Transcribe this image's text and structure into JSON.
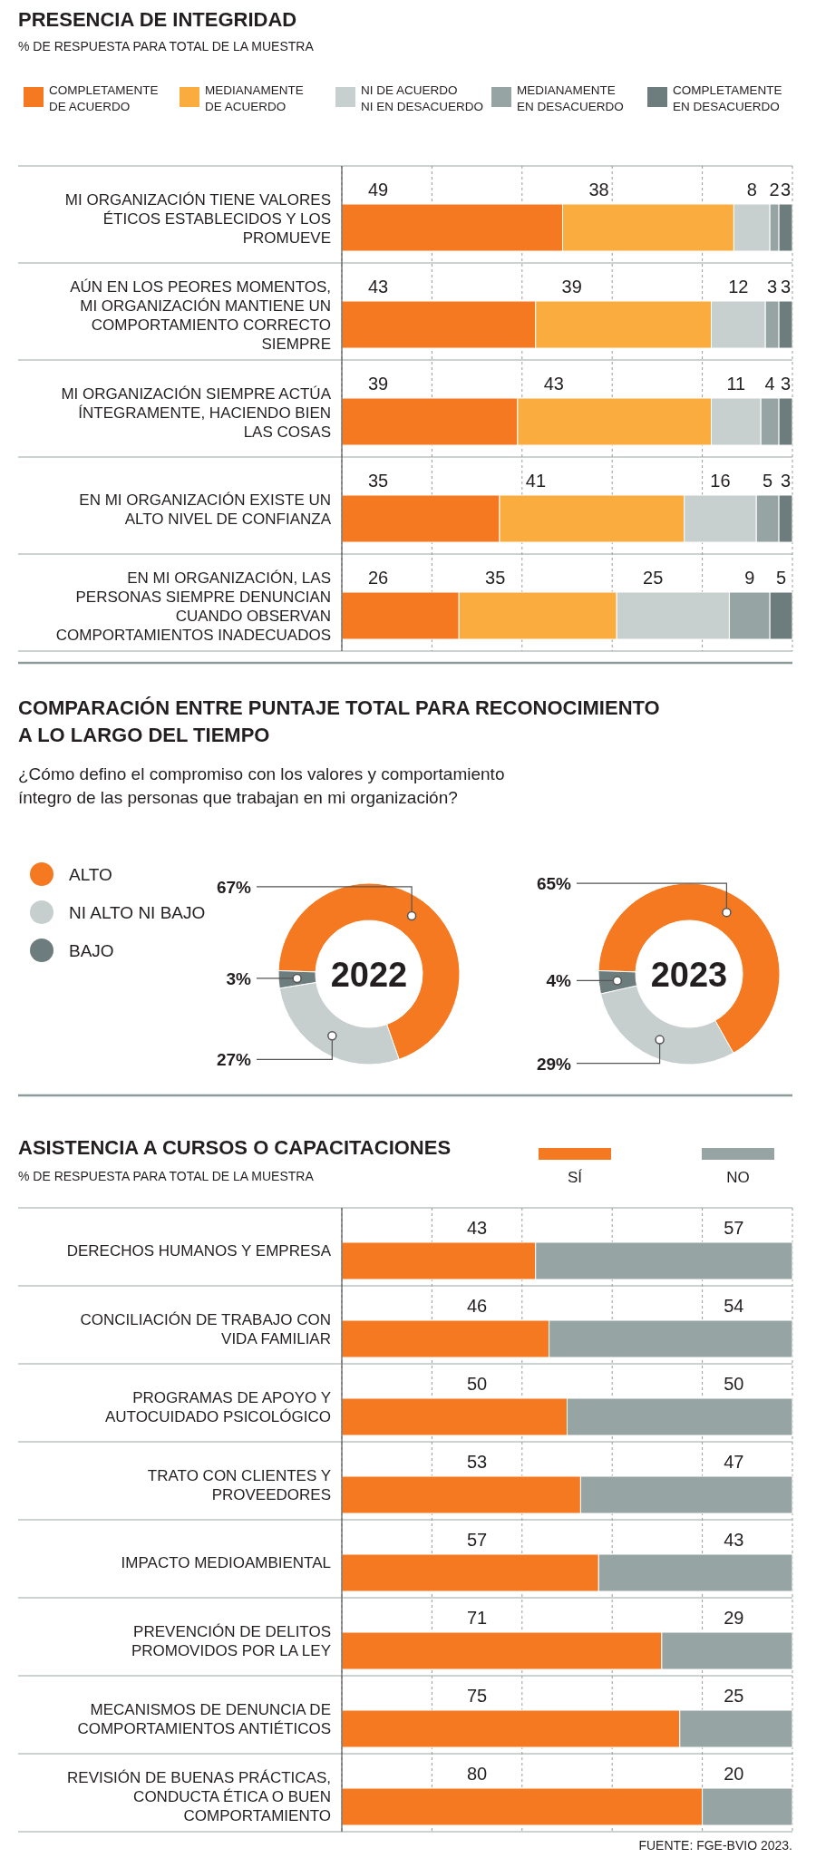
{
  "chart_data": [
    {
      "type": "bar",
      "title": "PRESENCIA DE INTEGRIDAD",
      "subtitle": "% DE RESPUESTA PARA TOTAL DE LA MUESTRA",
      "orientation": "horizontal",
      "stacked": true,
      "legend": "top",
      "data_labels": true,
      "grid": "x",
      "tick_labels": "y",
      "xlim": [
        0,
        100
      ],
      "xticks": [
        {
          "value": 0,
          "label": null
        },
        {
          "value": 20,
          "label": null
        },
        {
          "value": 40,
          "label": null
        },
        {
          "value": 60,
          "label": null
        },
        {
          "value": 80,
          "label": null
        },
        {
          "value": 100,
          "label": null
        }
      ],
      "categories": [
        "MI ORGANIZACIÓN TIENE VALORES ÉTICOS ESTABLECIDOS Y LOS PROMUEVE",
        "AÚN EN LOS PEORES MOMENTOS, MI ORGANIZACIÓN MANTIENE UN COMPORTAMIENTO CORRECTO SIEMPRE",
        "MI ORGANIZACIÓN SIEMPRE ACTÚA ÍNTEGRAMENTE, HACIENDO BIEN LAS COSAS",
        "EN MI ORGANIZACIÓN EXISTE UN ALTO NIVEL DE CONFIANZA",
        "EN MI ORGANIZACIÓN, LAS PERSONAS SIEMPRE DENUNCIAN CUANDO OBSERVAN COMPORTAMIENTOS INADECUADOS"
      ],
      "series": [
        {
          "name": "COMPLETAMENTE DE ACUERDO",
          "color": "#f47920",
          "values": [
            49,
            43,
            39,
            35,
            26
          ]
        },
        {
          "name": "MEDIANAMENTE DE ACUERDO",
          "color": "#fbac3e",
          "values": [
            38,
            39,
            43,
            41,
            35
          ]
        },
        {
          "name": "NI DE ACUERDO NI EN DESACUERDO",
          "color": "#c7d0cf",
          "values": [
            8,
            12,
            11,
            16,
            25
          ]
        },
        {
          "name": "MEDIANAMENTE EN DESACUERDO",
          "color": "#97a4a4",
          "values": [
            2,
            3,
            4,
            5,
            9
          ]
        },
        {
          "name": "COMPLETAMENTE EN DESACUERDO",
          "color": "#6d7c7c",
          "values": [
            3,
            3,
            3,
            3,
            5
          ]
        }
      ]
    },
    {
      "type": "donut",
      "title": "COMPARACIÓN ENTRE PUNTAJE TOTAL PARA RECONOCIMIENTO A LO LARGO DEL TIEMPO",
      "subtitle": "¿Cómo defino el compromiso con los valores y comportamiento íntegro de las personas que trabajan en mi organización?",
      "legend": "left",
      "annotations": [
        "2022"
      ],
      "categories": [
        "ALTO",
        "NI ALTO NI BAJO",
        "BAJO"
      ],
      "values": [
        67,
        27,
        3
      ],
      "colors": [
        "#f47920",
        "#c6cfce",
        "#6d7c7c"
      ],
      "value_labels": [
        "67%",
        "27%",
        "3%"
      ]
    },
    {
      "type": "donut",
      "annotations": [
        "2023"
      ],
      "categories": [
        null,
        null,
        null
      ],
      "values": [
        65,
        29,
        4
      ],
      "colors": [
        "#f47920",
        "#c6cfce",
        "#6d7c7c"
      ],
      "value_labels": [
        "65%",
        "29%",
        "4%"
      ]
    },
    {
      "type": "bar",
      "title": "ASISTENCIA A CURSOS O CAPACITACIONES",
      "subtitle": "% DE RESPUESTA PARA TOTAL DE LA MUESTRA",
      "orientation": "horizontal",
      "stacked": true,
      "legend": "top right",
      "data_labels": true,
      "grid": "x",
      "tick_labels": "y",
      "xlim": [
        0,
        100
      ],
      "xticks": [
        {
          "value": 0,
          "label": null
        },
        {
          "value": 20,
          "label": null
        },
        {
          "value": 40,
          "label": null
        },
        {
          "value": 60,
          "label": null
        },
        {
          "value": 80,
          "label": null
        },
        {
          "value": 100,
          "label": null
        }
      ],
      "categories": [
        "DERECHOS HUMANOS Y EMPRESA",
        "CONCILIACIÓN DE TRABAJO CON VIDA FAMILIAR",
        "PROGRAMAS DE APOYO Y AUTOCUIDADO PSICOLÓGICO",
        "TRATO CON CLIENTES Y PROVEEDORES",
        "IMPACTO MEDIOAMBIENTAL",
        "PREVENCIÓN DE DELITOS PROMOVIDOS POR LA LEY",
        "MECANISMOS DE DENUNCIA DE COMPORTAMIENTOS ANTIÉTICOS",
        "REVISIÓN DE BUENAS PRÁCTICAS, CONDUCTA ÉTICA O BUEN COMPORTAMIENTO"
      ],
      "series": [
        {
          "name": "SÍ",
          "color": "#f47920",
          "values": [
            43,
            46,
            50,
            53,
            57,
            71,
            75,
            80
          ]
        },
        {
          "name": "NO",
          "color": "#97a4a4",
          "values": [
            57,
            54,
            50,
            47,
            43,
            29,
            25,
            20
          ]
        }
      ],
      "annotations": [
        "FUENTE: FGE-BVIO 2023."
      ]
    }
  ]
}
